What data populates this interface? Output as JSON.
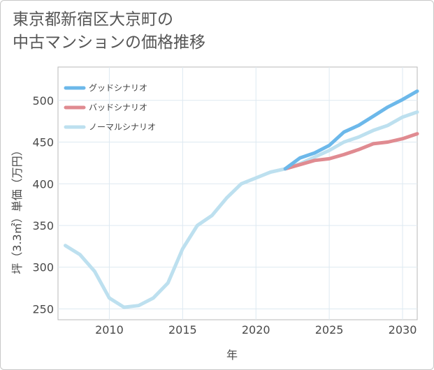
{
  "title_line1": "東京都新宿区大京町の",
  "title_line2": "中古マンションの価格推移",
  "chart_data": {
    "type": "line",
    "title": "東京都新宿区大京町の中古マンションの価格推移",
    "xlabel": "年",
    "ylabel": "坪（3.3㎡）単価（万円）",
    "xlim": [
      2006.5,
      2031
    ],
    "ylim": [
      237,
      540
    ],
    "xticks": [
      2010,
      2015,
      2020,
      2025,
      2030
    ],
    "yticks": [
      250,
      300,
      350,
      400,
      450,
      500
    ],
    "grid": true,
    "legend_position": "top-left",
    "series": [
      {
        "name": "グッドシナリオ",
        "color": "#6cb8ea",
        "x": [
          2022,
          2023,
          2024,
          2025,
          2026,
          2027,
          2028,
          2029,
          2030,
          2031
        ],
        "y": [
          418,
          431,
          437,
          446,
          462,
          470,
          481,
          492,
          501,
          511
        ]
      },
      {
        "name": "バッドシナリオ",
        "color": "#e08b91",
        "x": [
          2022,
          2023,
          2024,
          2025,
          2026,
          2027,
          2028,
          2029,
          2030,
          2031
        ],
        "y": [
          418,
          423,
          428,
          430,
          435,
          441,
          448,
          450,
          454,
          460
        ]
      },
      {
        "name": "ノーマルシナリオ",
        "color": "#bde0ef",
        "x": [
          2007,
          2008,
          2009,
          2010,
          2011,
          2012,
          2013,
          2014,
          2015,
          2016,
          2017,
          2018,
          2019,
          2020,
          2021,
          2022,
          2023,
          2024,
          2025,
          2026,
          2027,
          2028,
          2029,
          2030,
          2031
        ],
        "y": [
          326,
          315,
          295,
          263,
          252,
          254,
          263,
          281,
          322,
          350,
          362,
          383,
          400,
          407,
          414,
          418,
          424,
          432,
          440,
          450,
          456,
          464,
          470,
          480,
          486
        ]
      }
    ]
  }
}
